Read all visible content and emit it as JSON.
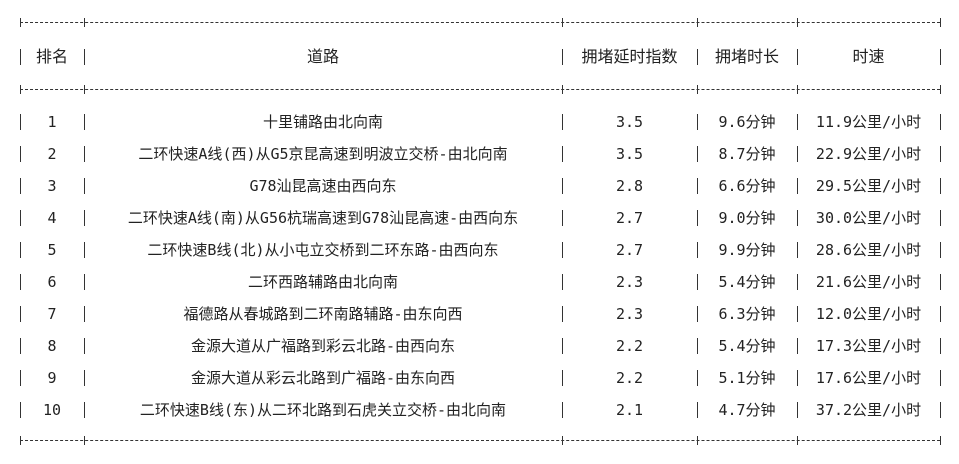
{
  "table": {
    "headers": [
      "排名",
      "道路",
      "拥堵延时指数",
      "拥堵时长",
      "时速"
    ],
    "rows": [
      [
        "1",
        "十里铺路由北向南",
        "3.5",
        "9.6分钟",
        "11.9公里/小时"
      ],
      [
        "2",
        "二环快速A线(西)从G5京昆高速到明波立交桥-由北向南",
        "3.5",
        "8.7分钟",
        "22.9公里/小时"
      ],
      [
        "3",
        "G78汕昆高速由西向东",
        "2.8",
        "6.6分钟",
        "29.5公里/小时"
      ],
      [
        "4",
        "二环快速A线(南)从G56杭瑞高速到G78汕昆高速-由西向东",
        "2.7",
        "9.0分钟",
        "30.0公里/小时"
      ],
      [
        "5",
        "二环快速B线(北)从小屯立交桥到二环东路-由西向东",
        "2.7",
        "9.9分钟",
        "28.6公里/小时"
      ],
      [
        "6",
        "二环西路辅路由北向南",
        "2.3",
        "5.4分钟",
        "21.6公里/小时"
      ],
      [
        "7",
        "福德路从春城路到二环南路辅路-由东向西",
        "2.3",
        "6.3分钟",
        "12.0公里/小时"
      ],
      [
        "8",
        "金源大道从广福路到彩云北路-由西向东",
        "2.2",
        "5.4分钟",
        "17.3公里/小时"
      ],
      [
        "9",
        "金源大道从彩云北路到广福路-由东向西",
        "2.2",
        "5.1分钟",
        "17.6公里/小时"
      ],
      [
        "10",
        "二环快速B线(东)从二环北路到石虎关立交桥-由北向南",
        "2.1",
        "4.7分钟",
        "37.2公里/小时"
      ]
    ]
  }
}
